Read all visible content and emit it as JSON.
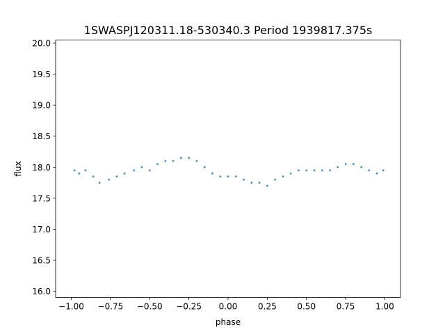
{
  "chart_data": {
    "type": "scatter",
    "title": "1SWASPJ120311.18-530340.3 Period 1939817.375s",
    "xlabel": "phase",
    "ylabel": "flux",
    "xlim": [
      -1.1,
      1.1
    ],
    "ylim": [
      15.9,
      20.05
    ],
    "xticks": [
      -1.0,
      -0.75,
      -0.5,
      -0.25,
      0.0,
      0.25,
      0.5,
      0.75,
      1.0
    ],
    "xtick_labels": [
      "−1.00",
      "−0.75",
      "−0.50",
      "−0.25",
      "0.00",
      "0.25",
      "0.50",
      "0.75",
      "1.00"
    ],
    "yticks": [
      16.0,
      16.5,
      17.0,
      17.5,
      18.0,
      18.5,
      19.0,
      19.5,
      20.0
    ],
    "ytick_labels": [
      "16.0",
      "16.5",
      "17.0",
      "17.5",
      "18.0",
      "18.5",
      "19.0",
      "19.5",
      "20.0"
    ],
    "grid": false,
    "legend": "none",
    "color": "#1f77b4",
    "series": [
      {
        "x": [
          -0.98,
          -0.95,
          -0.91,
          -0.86,
          -0.82,
          -0.76,
          -0.71,
          -0.66,
          -0.6,
          -0.55,
          -0.5,
          -0.45,
          -0.4,
          -0.35,
          -0.3,
          -0.25,
          -0.2,
          -0.15,
          -0.1,
          -0.05,
          0.0,
          0.05,
          0.1,
          0.15,
          0.2,
          0.25,
          0.3,
          0.35,
          0.4,
          0.45,
          0.5,
          0.55,
          0.6,
          0.65,
          0.7,
          0.75,
          0.8,
          0.85,
          0.9,
          0.95,
          0.99
        ],
        "y": [
          17.95,
          17.9,
          17.95,
          17.85,
          17.75,
          17.8,
          17.85,
          17.9,
          17.95,
          18.0,
          17.95,
          18.05,
          18.1,
          18.1,
          18.15,
          18.15,
          18.1,
          18.0,
          17.9,
          17.85,
          17.85,
          17.85,
          17.8,
          17.75,
          17.75,
          17.7,
          17.8,
          17.85,
          17.9,
          17.95,
          17.95,
          17.95,
          17.95,
          17.95,
          18.0,
          18.05,
          18.05,
          18.0,
          17.95,
          17.9,
          17.95
        ]
      }
    ]
  }
}
